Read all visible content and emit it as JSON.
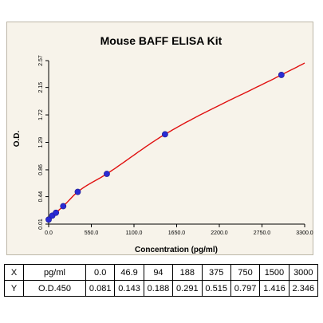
{
  "chart_data": {
    "type": "scatter",
    "title": "Mouse BAFF ELISA Kit",
    "xlabel": "Concentration (pg/ml)",
    "ylabel": "O.D.",
    "xlim": [
      0,
      3300
    ],
    "ylim": [
      0.01,
      2.57
    ],
    "x_ticks": [
      "0.0",
      "550.0",
      "1100.0",
      "1650.0",
      "2200.0",
      "2750.0",
      "3300.0"
    ],
    "y_ticks": [
      "0.01",
      "0.44",
      "0.86",
      "1.29",
      "1.72",
      "2.15",
      "2.57"
    ],
    "series": [
      {
        "x": [
          0,
          46.9,
          94,
          188,
          375,
          750,
          1500,
          3000
        ],
        "y": [
          0.081,
          0.143,
          0.188,
          0.291,
          0.515,
          0.797,
          1.416,
          2.346
        ],
        "point_color": "#2b2bd4",
        "line_color": "#e01010"
      }
    ],
    "grid": false,
    "legend": false
  },
  "table": {
    "rows": [
      {
        "label": "X",
        "name": "pg/ml",
        "values": [
          "0.0",
          "46.9",
          "94",
          "188",
          "375",
          "750",
          "1500",
          "3000"
        ]
      },
      {
        "label": "Y",
        "name": "O.D.450",
        "values": [
          "0.081",
          "0.143",
          "0.188",
          "0.291",
          "0.515",
          "0.797",
          "1.416",
          "2.346"
        ]
      }
    ]
  }
}
